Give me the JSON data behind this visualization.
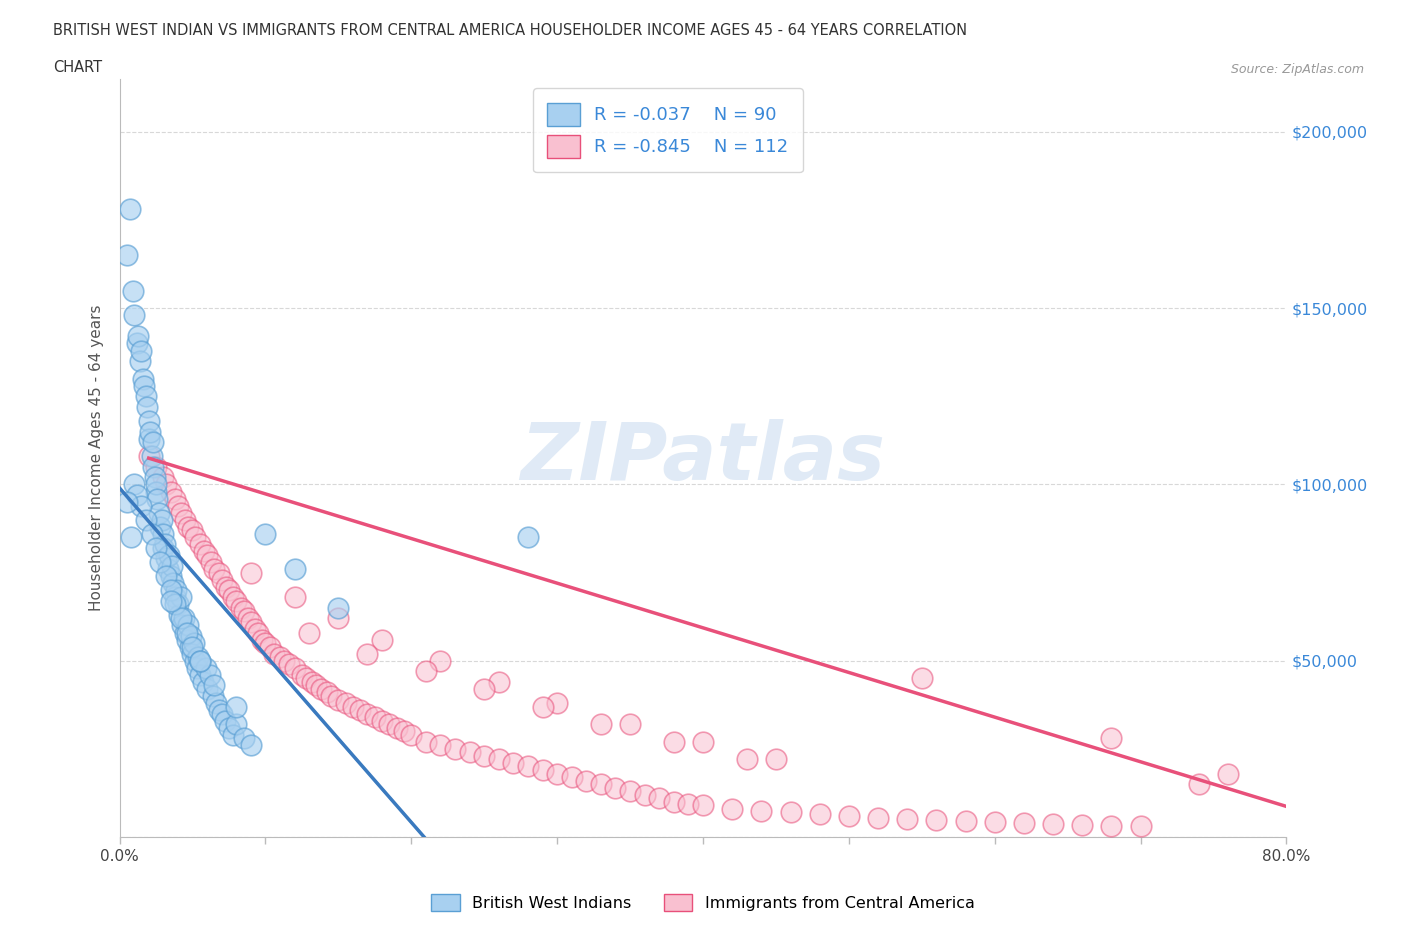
{
  "title_line1": "BRITISH WEST INDIAN VS IMMIGRANTS FROM CENTRAL AMERICA HOUSEHOLDER INCOME AGES 45 - 64 YEARS CORRELATION",
  "title_line2": "CHART",
  "source_text": "Source: ZipAtlas.com",
  "ylabel": "Householder Income Ages 45 - 64 years",
  "watermark_text": "ZIPatlas",
  "legend_r1": "R = -0.037",
  "legend_n1": "N = 90",
  "legend_r2": "R = -0.845",
  "legend_n2": "N = 112",
  "group1_label": "British West Indians",
  "group2_label": "Immigrants from Central America",
  "color_blue_fill": "#a8d0f0",
  "color_blue_edge": "#5a9fd4",
  "color_pink_fill": "#f9c0d0",
  "color_pink_edge": "#e8507a",
  "color_trendline_blue": "#3a7abf",
  "color_trendline_pink": "#e8507a",
  "color_dashed": "#7fb8e8",
  "color_grid": "#d8d8d8",
  "color_title": "#333333",
  "color_axis_label": "#555555",
  "color_right_ticks": "#3a88d8",
  "background_color": "#ffffff",
  "xmin": 0.0,
  "xmax": 0.8,
  "ymin": 0,
  "ymax": 215000,
  "yticks": [
    0,
    50000,
    100000,
    150000,
    200000
  ],
  "ytick_labels": [
    "",
    "$50,000",
    "$100,000",
    "$150,000",
    "$200,000"
  ],
  "xtick_vals": [
    0.0,
    0.1,
    0.2,
    0.3,
    0.4,
    0.5,
    0.6,
    0.7,
    0.8
  ],
  "blue_x": [
    0.005,
    0.007,
    0.009,
    0.01,
    0.012,
    0.013,
    0.014,
    0.015,
    0.016,
    0.017,
    0.018,
    0.019,
    0.02,
    0.02,
    0.021,
    0.022,
    0.023,
    0.023,
    0.024,
    0.025,
    0.025,
    0.026,
    0.027,
    0.028,
    0.029,
    0.03,
    0.03,
    0.031,
    0.032,
    0.033,
    0.034,
    0.035,
    0.036,
    0.037,
    0.038,
    0.039,
    0.04,
    0.041,
    0.042,
    0.043,
    0.044,
    0.045,
    0.046,
    0.047,
    0.048,
    0.049,
    0.05,
    0.051,
    0.052,
    0.053,
    0.054,
    0.055,
    0.057,
    0.059,
    0.06,
    0.062,
    0.064,
    0.066,
    0.068,
    0.07,
    0.072,
    0.075,
    0.078,
    0.08,
    0.085,
    0.09,
    0.01,
    0.012,
    0.015,
    0.018,
    0.022,
    0.025,
    0.028,
    0.032,
    0.035,
    0.038,
    0.042,
    0.046,
    0.05,
    0.055,
    0.005,
    0.008,
    0.035,
    0.055,
    0.065,
    0.08,
    0.1,
    0.12,
    0.15,
    0.28
  ],
  "blue_y": [
    165000,
    178000,
    155000,
    148000,
    140000,
    142000,
    135000,
    138000,
    130000,
    128000,
    125000,
    122000,
    118000,
    113000,
    115000,
    108000,
    112000,
    105000,
    102000,
    98000,
    100000,
    96000,
    92000,
    88000,
    90000,
    86000,
    82000,
    83000,
    79000,
    76000,
    80000,
    74000,
    77000,
    72000,
    68000,
    70000,
    66000,
    63000,
    68000,
    60000,
    62000,
    58000,
    56000,
    60000,
    54000,
    57000,
    52000,
    55000,
    50000,
    48000,
    51000,
    46000,
    44000,
    48000,
    42000,
    46000,
    40000,
    38000,
    36000,
    35000,
    33000,
    31000,
    29000,
    32000,
    28000,
    26000,
    100000,
    97000,
    94000,
    90000,
    86000,
    82000,
    78000,
    74000,
    70000,
    66000,
    62000,
    58000,
    54000,
    50000,
    95000,
    85000,
    67000,
    50000,
    43000,
    37000,
    86000,
    76000,
    65000,
    85000
  ],
  "pink_x": [
    0.02,
    0.025,
    0.03,
    0.032,
    0.035,
    0.038,
    0.04,
    0.042,
    0.045,
    0.047,
    0.05,
    0.052,
    0.055,
    0.058,
    0.06,
    0.063,
    0.065,
    0.068,
    0.07,
    0.073,
    0.075,
    0.078,
    0.08,
    0.083,
    0.085,
    0.088,
    0.09,
    0.093,
    0.095,
    0.098,
    0.1,
    0.103,
    0.106,
    0.11,
    0.113,
    0.116,
    0.12,
    0.125,
    0.128,
    0.132,
    0.135,
    0.138,
    0.142,
    0.145,
    0.15,
    0.155,
    0.16,
    0.165,
    0.17,
    0.175,
    0.18,
    0.185,
    0.19,
    0.195,
    0.2,
    0.21,
    0.22,
    0.23,
    0.24,
    0.25,
    0.26,
    0.27,
    0.28,
    0.29,
    0.3,
    0.31,
    0.32,
    0.33,
    0.34,
    0.35,
    0.36,
    0.37,
    0.38,
    0.39,
    0.4,
    0.42,
    0.44,
    0.46,
    0.48,
    0.5,
    0.52,
    0.54,
    0.56,
    0.58,
    0.6,
    0.62,
    0.64,
    0.66,
    0.68,
    0.7,
    0.09,
    0.12,
    0.15,
    0.18,
    0.22,
    0.26,
    0.3,
    0.35,
    0.4,
    0.45,
    0.13,
    0.17,
    0.21,
    0.25,
    0.29,
    0.33,
    0.38,
    0.43,
    0.55,
    0.68,
    0.74,
    0.76
  ],
  "pink_y": [
    108000,
    105000,
    102000,
    100000,
    98000,
    96000,
    94000,
    92000,
    90000,
    88000,
    87000,
    85000,
    83000,
    81000,
    80000,
    78000,
    76000,
    75000,
    73000,
    71000,
    70000,
    68000,
    67000,
    65000,
    64000,
    62000,
    61000,
    59000,
    58000,
    56000,
    55000,
    54000,
    52000,
    51000,
    50000,
    49000,
    48000,
    46000,
    45000,
    44000,
    43000,
    42000,
    41000,
    40000,
    39000,
    38000,
    37000,
    36000,
    35000,
    34000,
    33000,
    32000,
    31000,
    30000,
    29000,
    27000,
    26000,
    25000,
    24000,
    23000,
    22000,
    21000,
    20000,
    19000,
    18000,
    17000,
    16000,
    15000,
    14000,
    13000,
    12000,
    11000,
    10000,
    9500,
    9000,
    8000,
    7500,
    7000,
    6500,
    6000,
    5500,
    5000,
    4800,
    4500,
    4200,
    4000,
    3800,
    3500,
    3200,
    3000,
    75000,
    68000,
    62000,
    56000,
    50000,
    44000,
    38000,
    32000,
    27000,
    22000,
    58000,
    52000,
    47000,
    42000,
    37000,
    32000,
    27000,
    22000,
    45000,
    28000,
    15000,
    18000
  ]
}
